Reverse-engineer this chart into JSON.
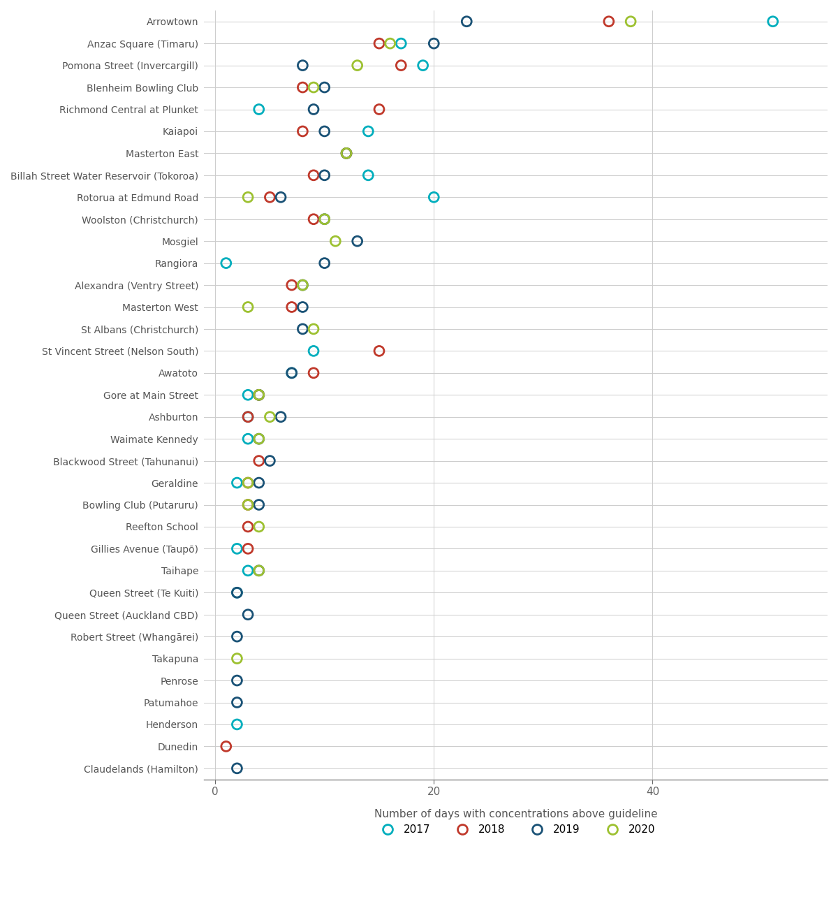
{
  "sites": [
    "Arrowtown",
    "Anzac Square (Timaru)",
    "Pomona Street (Invercargill)",
    "Blenheim Bowling Club",
    "Richmond Central at Plunket",
    "Kaiapoi",
    "Masterton East",
    "Billah Street Water Reservoir (Tokoroa)",
    "Rotorua at Edmund Road",
    "Woolston (Christchurch)",
    "Mosgiel",
    "Rangiora",
    "Alexandra (Ventry Street)",
    "Masterton West",
    "St Albans (Christchurch)",
    "St Vincent Street (Nelson South)",
    "Awatoto",
    "Gore at Main Street",
    "Ashburton",
    "Waimate Kennedy",
    "Blackwood Street (Tahunanui)",
    "Geraldine",
    "Bowling Club (Putaruru)",
    "Reefton School",
    "Gillies Avenue (Taupō)",
    "Taihape",
    "Queen Street (Te Kuiti)",
    "Queen Street (Auckland CBD)",
    "Robert Street (Whangārei)",
    "Takapuna",
    "Penrose",
    "Patumahoe",
    "Henderson",
    "Dunedin",
    "Claudelands (Hamilton)"
  ],
  "data": {
    "2017": [
      51,
      17,
      19,
      null,
      4,
      14,
      null,
      14,
      20,
      null,
      null,
      1,
      null,
      null,
      null,
      9,
      7,
      3,
      3,
      3,
      null,
      2,
      null,
      null,
      2,
      3,
      2,
      null,
      null,
      null,
      null,
      null,
      2,
      null,
      null
    ],
    "2018": [
      36,
      15,
      17,
      8,
      15,
      8,
      12,
      9,
      5,
      9,
      null,
      null,
      7,
      7,
      null,
      15,
      9,
      4,
      3,
      null,
      4,
      3,
      3,
      3,
      3,
      null,
      null,
      null,
      null,
      null,
      null,
      null,
      null,
      1,
      null
    ],
    "2019": [
      23,
      20,
      8,
      10,
      9,
      10,
      12,
      10,
      6,
      10,
      13,
      10,
      8,
      8,
      8,
      null,
      7,
      4,
      6,
      4,
      5,
      4,
      4,
      null,
      null,
      4,
      2,
      3,
      2,
      null,
      2,
      2,
      null,
      null,
      2
    ],
    "2020": [
      38,
      16,
      13,
      9,
      null,
      null,
      12,
      null,
      3,
      10,
      11,
      null,
      8,
      3,
      9,
      null,
      null,
      4,
      5,
      4,
      null,
      3,
      3,
      4,
      null,
      4,
      null,
      null,
      null,
      2,
      null,
      null,
      null,
      null,
      null
    ]
  },
  "colors": {
    "2017": "#00AEBD",
    "2018": "#C0392B",
    "2019": "#1A5276",
    "2020": "#9DC131"
  },
  "xlabel": "Number of days with concentrations above guideline",
  "xlim": [
    -1,
    56
  ],
  "xticks": [
    0,
    20,
    40
  ],
  "marker_size": 100,
  "marker_linewidth": 2.0,
  "background_color": "#ffffff",
  "grid_color": "#cccccc",
  "spine_color": "#888888",
  "tick_color": "#666666",
  "label_color": "#555555"
}
